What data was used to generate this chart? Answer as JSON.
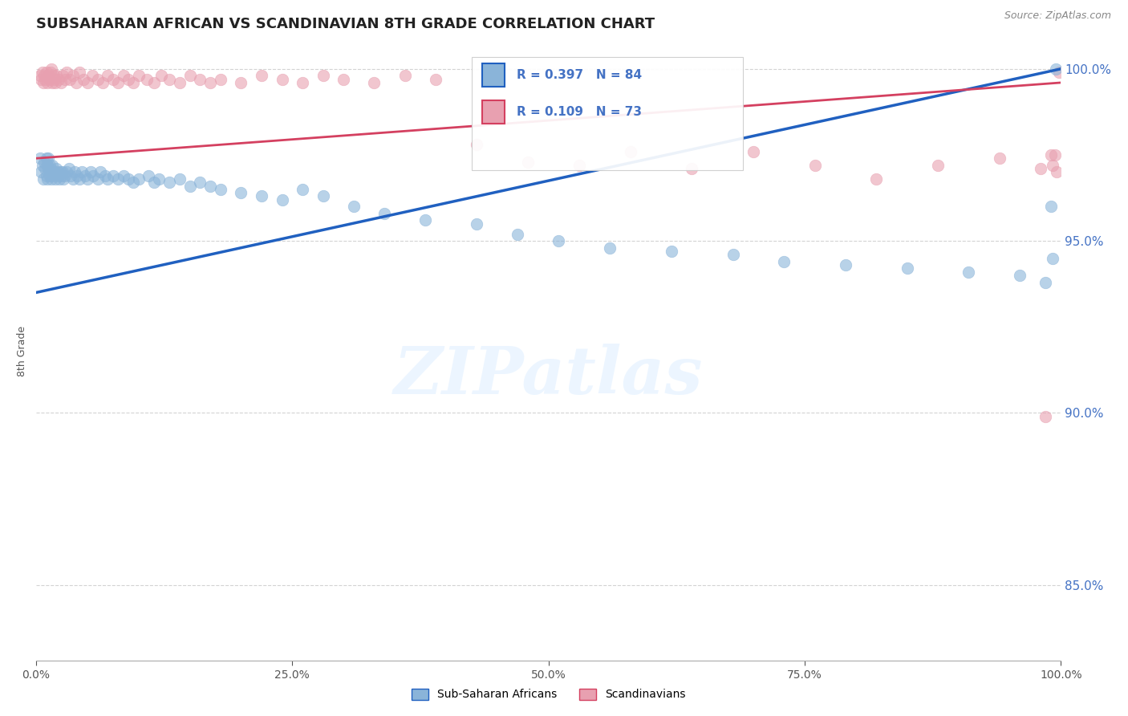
{
  "title": "SUBSAHARAN AFRICAN VS SCANDINAVIAN 8TH GRADE CORRELATION CHART",
  "source": "Source: ZipAtlas.com",
  "ylabel": "8th Grade",
  "xlim": [
    0.0,
    1.0
  ],
  "ylim": [
    0.828,
    1.008
  ],
  "yticks": [
    0.85,
    0.9,
    0.95,
    1.0
  ],
  "ytick_labels": [
    "85.0%",
    "90.0%",
    "95.0%",
    "100.0%"
  ],
  "blue_R": 0.397,
  "blue_N": 84,
  "pink_R": 0.109,
  "pink_N": 73,
  "blue_color": "#8ab4d9",
  "pink_color": "#e8a0b0",
  "blue_line_color": "#2060c0",
  "pink_line_color": "#d44060",
  "legend_blue_label": "Sub-Saharan Africans",
  "legend_pink_label": "Scandinavians",
  "blue_x": [
    0.004,
    0.005,
    0.006,
    0.007,
    0.008,
    0.009,
    0.01,
    0.01,
    0.011,
    0.011,
    0.012,
    0.012,
    0.013,
    0.013,
    0.014,
    0.015,
    0.015,
    0.016,
    0.017,
    0.018,
    0.019,
    0.02,
    0.021,
    0.022,
    0.023,
    0.024,
    0.025,
    0.026,
    0.027,
    0.028,
    0.03,
    0.032,
    0.034,
    0.036,
    0.038,
    0.04,
    0.042,
    0.045,
    0.048,
    0.05,
    0.053,
    0.056,
    0.06,
    0.063,
    0.067,
    0.07,
    0.075,
    0.08,
    0.085,
    0.09,
    0.095,
    0.1,
    0.11,
    0.115,
    0.12,
    0.13,
    0.14,
    0.15,
    0.16,
    0.17,
    0.18,
    0.2,
    0.22,
    0.24,
    0.26,
    0.28,
    0.31,
    0.34,
    0.38,
    0.43,
    0.47,
    0.51,
    0.56,
    0.62,
    0.68,
    0.73,
    0.79,
    0.85,
    0.91,
    0.96,
    0.985,
    0.99,
    0.992,
    0.995
  ],
  "blue_y": [
    0.974,
    0.97,
    0.972,
    0.968,
    0.973,
    0.971,
    0.969,
    0.974,
    0.972,
    0.968,
    0.971,
    0.974,
    0.969,
    0.972,
    0.971,
    0.97,
    0.968,
    0.972,
    0.969,
    0.97,
    0.968,
    0.971,
    0.97,
    0.969,
    0.968,
    0.97,
    0.969,
    0.97,
    0.968,
    0.969,
    0.97,
    0.971,
    0.969,
    0.968,
    0.97,
    0.969,
    0.968,
    0.97,
    0.969,
    0.968,
    0.97,
    0.969,
    0.968,
    0.97,
    0.969,
    0.968,
    0.969,
    0.968,
    0.969,
    0.968,
    0.967,
    0.968,
    0.969,
    0.967,
    0.968,
    0.967,
    0.968,
    0.966,
    0.967,
    0.966,
    0.965,
    0.964,
    0.963,
    0.962,
    0.965,
    0.963,
    0.96,
    0.958,
    0.956,
    0.955,
    0.952,
    0.95,
    0.948,
    0.947,
    0.946,
    0.944,
    0.943,
    0.942,
    0.941,
    0.94,
    0.938,
    0.96,
    0.945,
    1.0
  ],
  "pink_x": [
    0.004,
    0.005,
    0.006,
    0.007,
    0.008,
    0.009,
    0.01,
    0.011,
    0.012,
    0.013,
    0.014,
    0.015,
    0.016,
    0.017,
    0.018,
    0.019,
    0.02,
    0.022,
    0.024,
    0.026,
    0.028,
    0.03,
    0.033,
    0.036,
    0.039,
    0.042,
    0.046,
    0.05,
    0.055,
    0.06,
    0.065,
    0.07,
    0.075,
    0.08,
    0.085,
    0.09,
    0.095,
    0.1,
    0.108,
    0.115,
    0.122,
    0.13,
    0.14,
    0.15,
    0.16,
    0.17,
    0.18,
    0.2,
    0.22,
    0.24,
    0.26,
    0.28,
    0.3,
    0.33,
    0.36,
    0.39,
    0.43,
    0.48,
    0.53,
    0.58,
    0.64,
    0.7,
    0.76,
    0.82,
    0.88,
    0.94,
    0.98,
    0.985,
    0.99,
    0.992,
    0.994,
    0.996,
    0.998
  ],
  "pink_y": [
    0.998,
    0.997,
    0.999,
    0.996,
    0.998,
    0.997,
    0.999,
    0.996,
    0.998,
    0.997,
    0.999,
    1.0,
    0.996,
    0.998,
    0.997,
    0.996,
    0.998,
    0.997,
    0.996,
    0.998,
    0.997,
    0.999,
    0.997,
    0.998,
    0.996,
    0.999,
    0.997,
    0.996,
    0.998,
    0.997,
    0.996,
    0.998,
    0.997,
    0.996,
    0.998,
    0.997,
    0.996,
    0.998,
    0.997,
    0.996,
    0.998,
    0.997,
    0.996,
    0.998,
    0.997,
    0.996,
    0.997,
    0.996,
    0.998,
    0.997,
    0.996,
    0.998,
    0.997,
    0.996,
    0.998,
    0.997,
    0.978,
    0.973,
    0.972,
    0.976,
    0.971,
    0.976,
    0.972,
    0.968,
    0.972,
    0.974,
    0.971,
    0.899,
    0.975,
    0.972,
    0.975,
    0.97,
    0.999
  ],
  "blue_trend_y_start": 0.935,
  "blue_trend_y_end": 1.0,
  "pink_trend_y_start": 0.974,
  "pink_trend_y_end": 0.996,
  "watermark": "ZIPatlas",
  "bg_color": "#ffffff",
  "grid_color": "#c8c8c8",
  "axis_label_color": "#4472c4",
  "title_fontsize": 13,
  "label_fontsize": 9
}
